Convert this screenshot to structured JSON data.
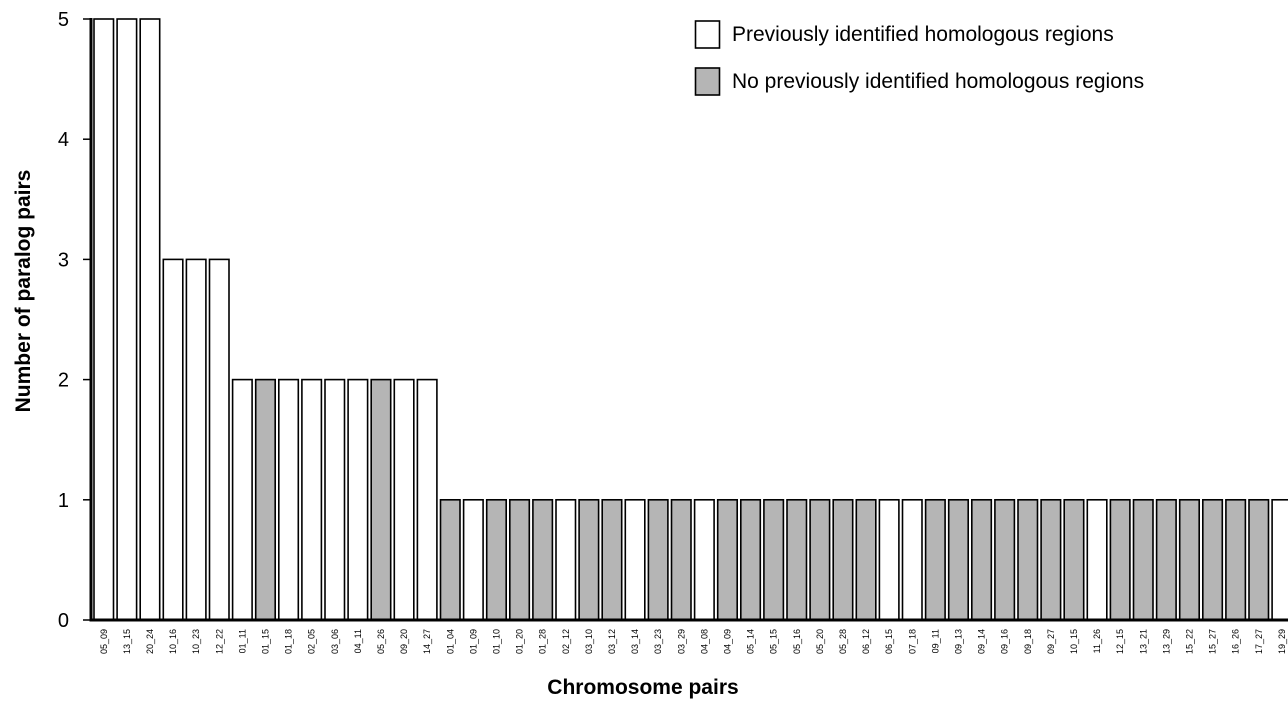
{
  "chart_data": {
    "type": "bar",
    "xlabel": "Chromosome pairs",
    "ylabel": "Number of paralog pairs",
    "ylim": [
      0,
      5
    ],
    "yticks": [
      0,
      1,
      2,
      3,
      4,
      5
    ],
    "grid": false,
    "legend_position": "top-right",
    "legend": [
      {
        "key": "previous",
        "label": "Previously identified homologous regions",
        "color": "#ffffff"
      },
      {
        "key": "none",
        "label": "No previously identified homologous regions",
        "color": "#b5b5b5"
      }
    ],
    "categories": [
      "05_09",
      "13_15",
      "20_24",
      "10_16",
      "10_23",
      "12_22",
      "01_11",
      "01_15",
      "01_18",
      "02_05",
      "03_06",
      "04_11",
      "05_26",
      "09_20",
      "14_27",
      "01_04",
      "01_09",
      "01_10",
      "01_20",
      "01_28",
      "02_12",
      "03_10",
      "03_12",
      "03_14",
      "03_23",
      "03_29",
      "04_08",
      "04_09",
      "05_14",
      "05_15",
      "05_16",
      "05_20",
      "05_28",
      "06_12",
      "06_15",
      "07_18",
      "09_11",
      "09_13",
      "09_14",
      "09_16",
      "09_18",
      "09_27",
      "10_15",
      "11_26",
      "12_15",
      "13_21",
      "13_29",
      "15_22",
      "15_27",
      "16_26",
      "17_27",
      "19_29"
    ],
    "values": [
      5,
      5,
      5,
      3,
      3,
      3,
      2,
      2,
      2,
      2,
      2,
      2,
      2,
      2,
      2,
      1,
      1,
      1,
      1,
      1,
      1,
      1,
      1,
      1,
      1,
      1,
      1,
      1,
      1,
      1,
      1,
      1,
      1,
      1,
      1,
      1,
      1,
      1,
      1,
      1,
      1,
      1,
      1,
      1,
      1,
      1,
      1,
      1,
      1,
      1,
      1,
      1
    ],
    "groups": [
      "previous",
      "previous",
      "previous",
      "previous",
      "previous",
      "previous",
      "previous",
      "none",
      "previous",
      "previous",
      "previous",
      "previous",
      "none",
      "previous",
      "previous",
      "none",
      "previous",
      "none",
      "none",
      "none",
      "previous",
      "none",
      "none",
      "previous",
      "none",
      "none",
      "previous",
      "none",
      "none",
      "none",
      "none",
      "none",
      "none",
      "none",
      "previous",
      "previous",
      "none",
      "none",
      "none",
      "none",
      "none",
      "none",
      "none",
      "previous",
      "none",
      "none",
      "none",
      "none",
      "none",
      "none",
      "none",
      "previous"
    ]
  }
}
